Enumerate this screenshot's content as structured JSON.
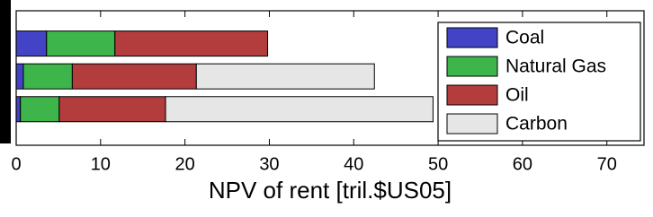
{
  "chart_data": {
    "type": "stacked-barh",
    "categories": [
      null,
      null,
      null
    ],
    "series": [
      {
        "name": "Coal",
        "color": "#4343c6",
        "values": [
          3.6,
          0.85,
          0.5
        ]
      },
      {
        "name": "Natural Gas",
        "color": "#3eb54b",
        "values": [
          8.1,
          5.8,
          4.6
        ]
      },
      {
        "name": "Oil",
        "color": "#b33c3c",
        "values": [
          18.1,
          14.7,
          12.6
        ]
      },
      {
        "name": "Carbon",
        "color": "#e6e6e6",
        "values": [
          0,
          21.1,
          31.7
        ]
      }
    ],
    "x_label": "NPV of rent [tril.$US05]",
    "xlim": [
      0,
      74.4
    ],
    "xticks": [
      0,
      10,
      20,
      30,
      40,
      50,
      60,
      70
    ],
    "legend": "upper right"
  }
}
